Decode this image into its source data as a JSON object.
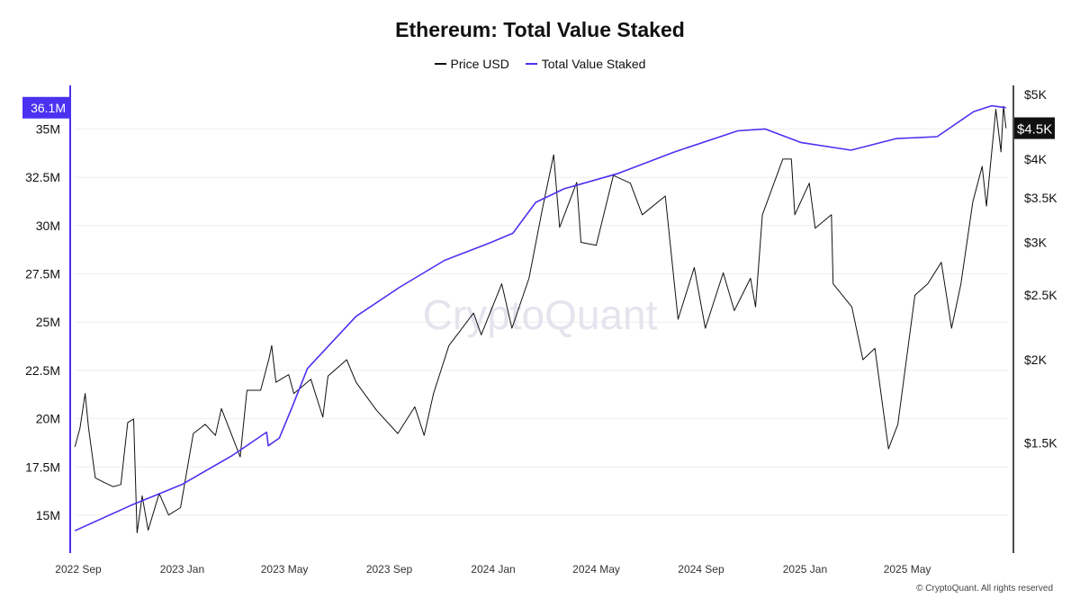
{
  "chart_data": {
    "type": "line",
    "title": "Ethereum: Total Value Staked",
    "legend_position": "top",
    "grid": true,
    "watermark": "CryptoQuant",
    "copyright": "© CryptoQuant. All rights reserved",
    "x_ticks": [
      {
        "label": "2022 Sep",
        "date": "2022-09-01"
      },
      {
        "label": "2023 Jan",
        "date": "2023-01-01"
      },
      {
        "label": "2023 May",
        "date": "2023-05-01"
      },
      {
        "label": "2023 Sep",
        "date": "2023-09-01"
      },
      {
        "label": "2024 Jan",
        "date": "2024-01-01"
      },
      {
        "label": "2024 May",
        "date": "2024-05-01"
      },
      {
        "label": "2024 Sep",
        "date": "2024-09-01"
      },
      {
        "label": "2025 Jan",
        "date": "2025-01-01"
      },
      {
        "label": "2025 May",
        "date": "2025-05-01"
      }
    ],
    "left_axis": {
      "scale": "linear",
      "unit": "M",
      "range": [
        13.5,
        37
      ],
      "ticks": [
        {
          "v": 15,
          "label": "15M"
        },
        {
          "v": 17.5,
          "label": "17.5M"
        },
        {
          "v": 20,
          "label": "20M"
        },
        {
          "v": 22.5,
          "label": "22.5M"
        },
        {
          "v": 25,
          "label": "25M"
        },
        {
          "v": 27.5,
          "label": "27.5M"
        },
        {
          "v": 30,
          "label": "30M"
        },
        {
          "v": 32.5,
          "label": "32.5M"
        },
        {
          "v": 35,
          "label": "35M"
        }
      ],
      "current_label": "36.1M",
      "current_value": 36.1,
      "color": "#4b32f0"
    },
    "right_axis": {
      "scale": "log",
      "range": [
        1050,
        5300
      ],
      "ticks": [
        {
          "v": 1500,
          "label": "$1.5K"
        },
        {
          "v": 2000,
          "label": "$2K"
        },
        {
          "v": 2500,
          "label": "$2.5K"
        },
        {
          "v": 3000,
          "label": "$3K"
        },
        {
          "v": 3500,
          "label": "$3.5K"
        },
        {
          "v": 4000,
          "label": "$4K"
        },
        {
          "v": 5000,
          "label": "$5K"
        }
      ],
      "current_label": "$4.5K",
      "current_value": 4450,
      "color": "#111111"
    },
    "series": [
      {
        "name": "Price USD",
        "axis": "right",
        "color": "#111111",
        "points": [
          [
            "2022-08-28",
            1480
          ],
          [
            "2022-09-03",
            1580
          ],
          [
            "2022-09-09",
            1780
          ],
          [
            "2022-09-13",
            1580
          ],
          [
            "2022-09-21",
            1330
          ],
          [
            "2022-10-01",
            1310
          ],
          [
            "2022-10-12",
            1290
          ],
          [
            "2022-10-21",
            1300
          ],
          [
            "2022-10-29",
            1610
          ],
          [
            "2022-11-05",
            1630
          ],
          [
            "2022-11-09",
            1100
          ],
          [
            "2022-11-15",
            1250
          ],
          [
            "2022-11-22",
            1110
          ],
          [
            "2022-12-05",
            1260
          ],
          [
            "2022-12-16",
            1170
          ],
          [
            "2022-12-30",
            1200
          ],
          [
            "2023-01-14",
            1550
          ],
          [
            "2023-01-28",
            1600
          ],
          [
            "2023-02-09",
            1540
          ],
          [
            "2023-02-16",
            1690
          ],
          [
            "2023-03-10",
            1430
          ],
          [
            "2023-03-18",
            1800
          ],
          [
            "2023-04-03",
            1800
          ],
          [
            "2023-04-13",
            2010
          ],
          [
            "2023-04-16",
            2100
          ],
          [
            "2023-04-21",
            1850
          ],
          [
            "2023-05-06",
            1900
          ],
          [
            "2023-05-12",
            1780
          ],
          [
            "2023-06-01",
            1870
          ],
          [
            "2023-06-15",
            1640
          ],
          [
            "2023-06-21",
            1890
          ],
          [
            "2023-07-13",
            2000
          ],
          [
            "2023-07-24",
            1850
          ],
          [
            "2023-08-17",
            1680
          ],
          [
            "2023-09-11",
            1550
          ],
          [
            "2023-10-01",
            1700
          ],
          [
            "2023-10-12",
            1540
          ],
          [
            "2023-10-23",
            1780
          ],
          [
            "2023-11-10",
            2100
          ],
          [
            "2023-12-09",
            2350
          ],
          [
            "2023-12-18",
            2180
          ],
          [
            "2024-01-11",
            2600
          ],
          [
            "2024-01-23",
            2230
          ],
          [
            "2024-02-12",
            2650
          ],
          [
            "2024-02-28",
            3380
          ],
          [
            "2024-03-12",
            4060
          ],
          [
            "2024-03-19",
            3160
          ],
          [
            "2024-04-08",
            3690
          ],
          [
            "2024-04-13",
            3000
          ],
          [
            "2024-05-01",
            2970
          ],
          [
            "2024-05-21",
            3780
          ],
          [
            "2024-06-10",
            3680
          ],
          [
            "2024-06-24",
            3300
          ],
          [
            "2024-07-21",
            3520
          ],
          [
            "2024-08-05",
            2300
          ],
          [
            "2024-08-24",
            2750
          ],
          [
            "2024-09-06",
            2230
          ],
          [
            "2024-09-27",
            2700
          ],
          [
            "2024-10-10",
            2370
          ],
          [
            "2024-10-29",
            2650
          ],
          [
            "2024-11-04",
            2400
          ],
          [
            "2024-11-12",
            3300
          ],
          [
            "2024-12-06",
            4000
          ],
          [
            "2024-12-16",
            4000
          ],
          [
            "2024-12-20",
            3300
          ],
          [
            "2025-01-06",
            3680
          ],
          [
            "2025-01-13",
            3150
          ],
          [
            "2025-02-01",
            3300
          ],
          [
            "2025-02-03",
            2600
          ],
          [
            "2025-02-25",
            2400
          ],
          [
            "2025-03-10",
            2000
          ],
          [
            "2025-03-24",
            2080
          ],
          [
            "2025-04-09",
            1470
          ],
          [
            "2025-04-20",
            1600
          ],
          [
            "2025-05-10",
            2500
          ],
          [
            "2025-05-25",
            2600
          ],
          [
            "2025-06-10",
            2800
          ],
          [
            "2025-06-22",
            2230
          ],
          [
            "2025-07-03",
            2600
          ],
          [
            "2025-07-17",
            3450
          ],
          [
            "2025-07-28",
            3900
          ],
          [
            "2025-08-02",
            3400
          ],
          [
            "2025-08-13",
            4750
          ],
          [
            "2025-08-19",
            4100
          ],
          [
            "2025-08-22",
            4800
          ],
          [
            "2025-08-25",
            4450
          ]
        ]
      },
      {
        "name": "Total Value Staked",
        "axis": "left",
        "color": "#4b32f0",
        "points": [
          [
            "2022-08-28",
            14.2
          ],
          [
            "2022-11-01",
            15.5
          ],
          [
            "2023-01-01",
            16.6
          ],
          [
            "2023-03-01",
            18.1
          ],
          [
            "2023-04-10",
            19.3
          ],
          [
            "2023-04-12",
            18.6
          ],
          [
            "2023-04-25",
            19.0
          ],
          [
            "2023-05-10",
            20.6
          ],
          [
            "2023-05-28",
            22.6
          ],
          [
            "2023-07-24",
            25.3
          ],
          [
            "2023-09-13",
            26.8
          ],
          [
            "2023-11-05",
            28.2
          ],
          [
            "2023-12-28",
            29.1
          ],
          [
            "2024-01-24",
            29.6
          ],
          [
            "2024-02-20",
            31.2
          ],
          [
            "2024-03-24",
            31.9
          ],
          [
            "2024-05-27",
            32.7
          ],
          [
            "2024-07-31",
            33.8
          ],
          [
            "2024-10-14",
            34.9
          ],
          [
            "2024-11-15",
            35.0
          ],
          [
            "2024-12-27",
            34.3
          ],
          [
            "2025-02-24",
            33.9
          ],
          [
            "2025-04-18",
            34.5
          ],
          [
            "2025-06-05",
            34.6
          ],
          [
            "2025-07-18",
            35.9
          ],
          [
            "2025-08-08",
            36.2
          ],
          [
            "2025-08-25",
            36.1
          ]
        ]
      }
    ]
  }
}
